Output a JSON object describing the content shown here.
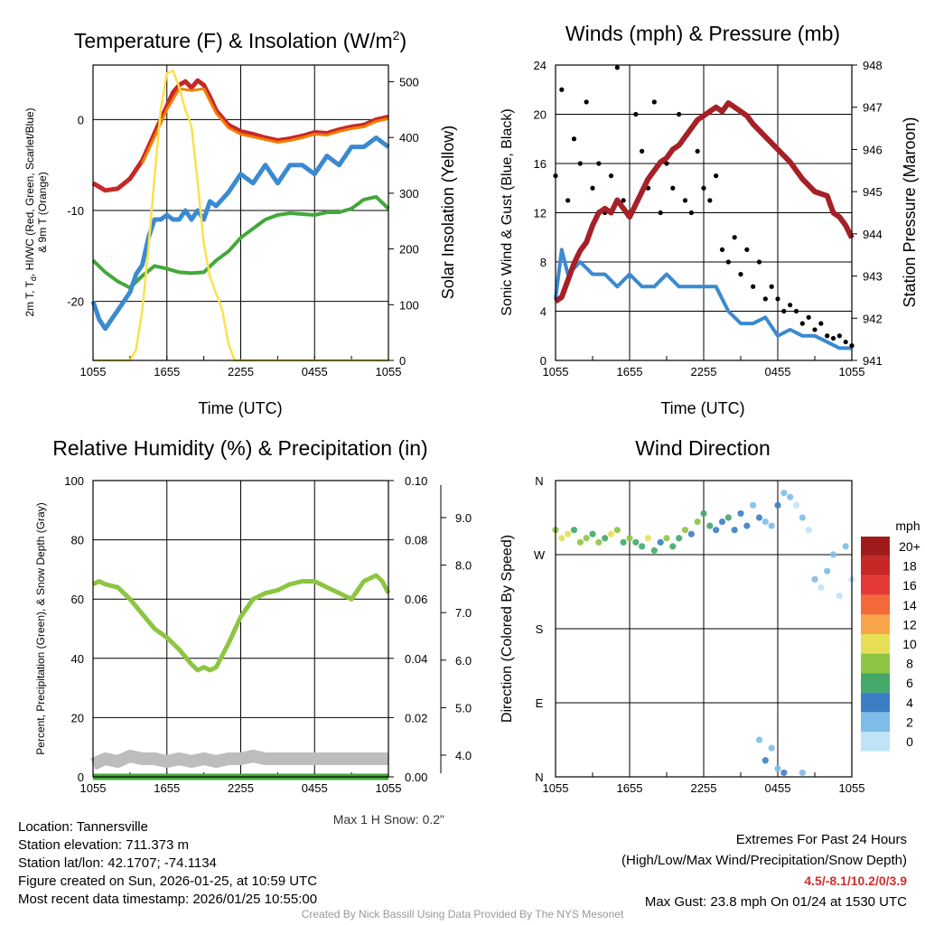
{
  "chart_data": [
    {
      "type": "line",
      "title": "Temperature (F) & Insolation (W/m",
      "title_sup": "2",
      "title_close": ")",
      "xlabel": "Time (UTC)",
      "ylabel_lines": [
        "2m T, T",
        "d",
        ", HI/WC (Red, Green, Scarlet/Blue)",
        "& 9m T (Orange)"
      ],
      "y2label": "Solar Insolation (Yellow)",
      "x_ticks": [
        "1055",
        "1655",
        "2255",
        "0455",
        "1055"
      ],
      "ylim": [
        -26.5,
        6
      ],
      "y_ticks": [
        0,
        -10,
        -20
      ],
      "y2lim": [
        0,
        530
      ],
      "y2_ticks": [
        0,
        100,
        200,
        300,
        400,
        500
      ],
      "series": [
        {
          "name": "2m T",
          "color": "#c62828",
          "x": [
            0,
            1,
            2,
            3,
            4,
            4.5,
            5,
            5.5,
            6,
            6.5,
            7,
            7.5,
            8,
            8.5,
            9,
            9.5,
            10,
            10.5,
            11,
            12,
            13,
            14,
            15,
            16,
            17,
            18,
            19,
            20,
            21,
            22,
            23,
            24
          ],
          "values": [
            -7,
            -7.8,
            -7.6,
            -6.5,
            -4.5,
            -3,
            -1.5,
            0,
            1.5,
            3,
            3.8,
            4.2,
            3.5,
            4.3,
            3.8,
            2.5,
            1,
            0.2,
            -0.6,
            -1.3,
            -1.6,
            -2,
            -2.3,
            -2.1,
            -1.8,
            -1.4,
            -1.5,
            -1.1,
            -0.8,
            -0.6,
            0,
            0.3
          ]
        },
        {
          "name": "9m T",
          "color": "#f57c00",
          "x": [
            4,
            5,
            6,
            7,
            8,
            9,
            10,
            11,
            12,
            13,
            14,
            15,
            16,
            17,
            18,
            19,
            20,
            21,
            22,
            23,
            24
          ],
          "values": [
            -4.8,
            -1.9,
            1.1,
            3.4,
            3.2,
            3.4,
            0.7,
            -0.9,
            -1.6,
            -1.9,
            -2.2,
            -2.5,
            -2.3,
            -2,
            -1.6,
            -1.7,
            -1.3,
            -1,
            -0.8,
            -0.2,
            0.1
          ]
        },
        {
          "name": "Td",
          "color": "#43a83a",
          "x": [
            0,
            1,
            2,
            3,
            4,
            5,
            6,
            7,
            8,
            9,
            10,
            11,
            12,
            13,
            14,
            15,
            16,
            17,
            18,
            19,
            20,
            21,
            22,
            23,
            24
          ],
          "values": [
            -15.5,
            -16.8,
            -17.8,
            -18.5,
            -17.2,
            -16.1,
            -16.4,
            -16.8,
            -16.9,
            -16.8,
            -15.5,
            -14.5,
            -13,
            -12,
            -11,
            -10.5,
            -10.3,
            -10.4,
            -10.5,
            -10.2,
            -10.2,
            -9.8,
            -8.8,
            -8.5,
            -9.8
          ]
        },
        {
          "name": "Wind Chill",
          "color": "#3b8ad0",
          "x": [
            0,
            0.5,
            1,
            1.5,
            2,
            2.5,
            3,
            3.5,
            4,
            4.5,
            5,
            5.5,
            6,
            6.5,
            7,
            7.5,
            8,
            8.5,
            9,
            9.5,
            10,
            11,
            12,
            13,
            14,
            15,
            16,
            17,
            18,
            19,
            20,
            21,
            22,
            23,
            24
          ],
          "values": [
            -20,
            -22,
            -23,
            -22,
            -21,
            -20,
            -19,
            -17,
            -16,
            -13,
            -11,
            -11,
            -10.5,
            -11,
            -11,
            -10,
            -11,
            -10,
            -11,
            -9,
            -9.5,
            -8,
            -6,
            -7,
            -5,
            -7,
            -5,
            -5,
            -6,
            -4,
            -5,
            -3,
            -3,
            -2,
            -3
          ]
        },
        {
          "name": "Solar Insolation",
          "color": "#fbe14b",
          "axis": "y2",
          "x": [
            0,
            2,
            3,
            3.5,
            4,
            4.5,
            5,
            5.5,
            6,
            6.5,
            7,
            7.5,
            8,
            8.5,
            9,
            9.5,
            10,
            10.5,
            11,
            11.5,
            24
          ],
          "values": [
            0,
            0,
            0,
            20,
            90,
            200,
            330,
            450,
            515,
            520,
            490,
            450,
            420,
            320,
            210,
            150,
            120,
            90,
            30,
            0,
            0
          ]
        }
      ]
    },
    {
      "type": "line",
      "title": "Winds (mph) & Pressure (mb)",
      "xlabel": "Time (UTC)",
      "ylabel": "Sonic Wind & Gust (Blue, Black)",
      "y2label": "Station Pressure (Maroon)",
      "x_ticks": [
        "1055",
        "1655",
        "2255",
        "0455",
        "1055"
      ],
      "ylim": [
        0,
        24
      ],
      "y_ticks": [
        0,
        4,
        8,
        12,
        16,
        20,
        24
      ],
      "y2lim": [
        941,
        948
      ],
      "y2_ticks": [
        941,
        942,
        943,
        944,
        945,
        946,
        947,
        948
      ],
      "series": [
        {
          "name": "Sonic Wind",
          "color": "#3b8ad0",
          "x": [
            0,
            0.5,
            1,
            2,
            3,
            4,
            5,
            6,
            7,
            8,
            9,
            10,
            11,
            12,
            13,
            14,
            15,
            16,
            17,
            18,
            19,
            20,
            21,
            22,
            23,
            24
          ],
          "values": [
            5,
            9,
            7,
            8,
            7,
            7,
            6,
            7,
            6,
            6,
            7,
            6,
            6,
            6,
            6,
            4,
            3,
            3,
            3.5,
            2,
            2.5,
            2,
            2,
            1.5,
            1,
            1
          ]
        },
        {
          "name": "Gust",
          "color": "#000000",
          "style": "points",
          "x": [
            0,
            0.5,
            1,
            1.5,
            2,
            2.5,
            3,
            3.5,
            4,
            4.5,
            5,
            5.5,
            6,
            6.5,
            7,
            7.5,
            8,
            8.5,
            9,
            9.5,
            10,
            10.5,
            11,
            11.5,
            12,
            12.5,
            13,
            13.5,
            14,
            14.5,
            15,
            15.5,
            16,
            16.5,
            17,
            17.5,
            18,
            18.5,
            19,
            19.5,
            20,
            20.5,
            21,
            21.5,
            22,
            22.5,
            23,
            23.5,
            24
          ],
          "values": [
            15,
            22,
            13,
            18,
            16,
            21,
            14,
            16,
            12,
            15,
            23.8,
            13,
            12,
            20,
            17,
            14,
            21,
            12,
            16,
            14,
            20,
            13,
            12,
            17,
            14,
            13,
            15,
            9,
            8,
            10,
            7,
            9,
            6,
            8,
            5,
            6,
            5,
            4,
            4.5,
            4,
            3,
            3.5,
            2.5,
            3,
            2,
            1.8,
            2,
            1.5,
            1.2
          ]
        },
        {
          "name": "Station Pressure",
          "color": "#a52127",
          "axis": "y2",
          "x": [
            0,
            0.5,
            1,
            1.5,
            2,
            2.5,
            3,
            3.5,
            4,
            4.5,
            5,
            5.5,
            6,
            6.5,
            7,
            7.5,
            8,
            8.5,
            9,
            9.5,
            10,
            10.5,
            11,
            11.5,
            12,
            12.5,
            13,
            13.5,
            14,
            14.5,
            15,
            15.5,
            16,
            17,
            18,
            19,
            20,
            21,
            22,
            22.5,
            23,
            23.5,
            24
          ],
          "values": [
            942.4,
            942.5,
            942.9,
            943.3,
            943.6,
            943.8,
            944.2,
            944.5,
            944.6,
            944.5,
            944.8,
            944.6,
            944.4,
            944.7,
            945,
            945.3,
            945.5,
            945.7,
            945.8,
            946,
            946.1,
            946.3,
            946.5,
            946.7,
            946.8,
            946.9,
            947,
            946.9,
            947.1,
            947,
            946.9,
            946.8,
            946.6,
            946.3,
            946,
            945.7,
            945.3,
            945,
            944.9,
            944.5,
            944.4,
            944.2,
            943.9
          ]
        }
      ]
    },
    {
      "type": "line",
      "title": "Relative Humidity (%) & Precipitation (in)",
      "xlabel": "",
      "ylabel": "Percent, Precipitation (Green), & Snow Depth (Gray)",
      "x_ticks": [
        "1055",
        "1655",
        "2255",
        "0455",
        "1055"
      ],
      "ylim": [
        0,
        100
      ],
      "y_ticks": [
        0,
        20,
        40,
        60,
        80,
        100
      ],
      "y2lim": [
        0,
        0.1
      ],
      "y2_ticks": [
        "0.00",
        "0.02",
        "0.04",
        "0.06",
        "0.08",
        "0.10"
      ],
      "y3_ticks": [
        "4.0",
        "5.0",
        "6.0",
        "7.0",
        "8.0",
        "9.0"
      ],
      "series": [
        {
          "name": "Relative Humidity",
          "color": "#8dc542",
          "x": [
            0,
            0.5,
            1,
            2,
            3,
            4,
            5,
            6,
            7,
            8,
            8.5,
            9,
            9.5,
            10,
            11,
            12,
            13,
            14,
            15,
            16,
            17,
            18,
            19,
            20,
            21,
            22,
            23,
            23.5,
            24
          ],
          "values": [
            65,
            66,
            65,
            64,
            60,
            55,
            50,
            47,
            43,
            38,
            36,
            37,
            36,
            37,
            45,
            54,
            60,
            62,
            63,
            65,
            66,
            66,
            64,
            62,
            60,
            66,
            68,
            66,
            62
          ]
        },
        {
          "name": "Precipitation",
          "color": "#43a83a",
          "x": [
            0,
            24
          ],
          "values": [
            0,
            0
          ]
        },
        {
          "name": "Snow Depth",
          "color": "#bdbdbd",
          "x": [
            0,
            1,
            2,
            3,
            4,
            5,
            6,
            7,
            8,
            9,
            10,
            11,
            12,
            13,
            14,
            15,
            16,
            17,
            18,
            19,
            20,
            21,
            22,
            23,
            24
          ],
          "values": [
            4,
            6,
            5,
            7,
            6,
            6,
            5,
            6,
            5,
            6,
            5,
            6,
            6,
            7,
            6,
            6,
            6,
            6,
            6,
            6,
            6,
            6,
            6,
            6,
            6
          ]
        }
      ]
    },
    {
      "type": "scatter",
      "title": "Wind Direction",
      "ylabel": "Direction (Colored By Speed)",
      "x_ticks": [
        "1055",
        "1655",
        "2255",
        "0455",
        "1055"
      ],
      "y_ticks": [
        "N",
        "W",
        "S",
        "E",
        "N"
      ],
      "colorbar_title": "mph",
      "colorbar": [
        {
          "label": "20+",
          "color": "#a01c1c"
        },
        {
          "label": "18",
          "color": "#c62828"
        },
        {
          "label": "16",
          "color": "#e53935"
        },
        {
          "label": "14",
          "color": "#f4693a"
        },
        {
          "label": "12",
          "color": "#f9a54a"
        },
        {
          "label": "10",
          "color": "#e6df55"
        },
        {
          "label": "8",
          "color": "#8dc542"
        },
        {
          "label": "6",
          "color": "#43a86a"
        },
        {
          "label": "4",
          "color": "#3b7ec4"
        },
        {
          "label": "2",
          "color": "#7fbce8"
        },
        {
          "label": "0",
          "color": "#bfe3f7"
        }
      ],
      "points_x": [
        0,
        0.5,
        1,
        1.5,
        2,
        2.5,
        3,
        3.5,
        4,
        4.5,
        5,
        5.5,
        6,
        6.5,
        7,
        7.5,
        8,
        8.5,
        9,
        9.5,
        10,
        10.5,
        11,
        11.5,
        12,
        12.5,
        13,
        13.5,
        14,
        14.5,
        15,
        15.5,
        16,
        16.5,
        17,
        17.5,
        18,
        18.5,
        19,
        19.5,
        20,
        20.5,
        21,
        21.5,
        22,
        22.5,
        23,
        23.5,
        24,
        16.5,
        17,
        17.5,
        18,
        18.5,
        20
      ],
      "points_dir": [
        300,
        290,
        295,
        300,
        285,
        290,
        295,
        285,
        290,
        295,
        300,
        285,
        290,
        285,
        280,
        290,
        275,
        285,
        290,
        280,
        290,
        300,
        295,
        310,
        320,
        305,
        300,
        310,
        315,
        300,
        320,
        305,
        330,
        315,
        310,
        305,
        330,
        345,
        340,
        330,
        315,
        300,
        240,
        230,
        250,
        270,
        220,
        280,
        240,
        45,
        20,
        35,
        10,
        5,
        5
      ],
      "points_speed": [
        8,
        10,
        9,
        6,
        8,
        7,
        5,
        8,
        6,
        9,
        7,
        5,
        8,
        6,
        5,
        9,
        6,
        4,
        7,
        5,
        6,
        8,
        4,
        7,
        5,
        6,
        4,
        3,
        5,
        4,
        3,
        4,
        2,
        3,
        1,
        2,
        3,
        1,
        1,
        0,
        1,
        0,
        1,
        0,
        1,
        1,
        0,
        1,
        0,
        2,
        3,
        2,
        1,
        3,
        1
      ]
    }
  ],
  "location": {
    "line1": "Location: Tannersville",
    "line2": "Station elevation: 711.373 m",
    "line3": "Station lat/lon: 42.1707; -74.1134",
    "line4": "Figure created on Sun, 2026-01-25, at 10:59 UTC",
    "line5": "Most recent data timestamp: 2026/01/25 10:55:00"
  },
  "max_snow": "Max 1 H Snow: 0.2\"",
  "extremes": {
    "heading": "Extremes For Past 24 Hours",
    "subheading": "(High/Low/Max Wind/Precipitation/Snow Depth)",
    "values": "4.5/-8.1/10.2/0/3.9",
    "values_color": "#d32f2f",
    "max_gust": "Max Gust: 23.8 mph On 01/24 at 1530 UTC"
  },
  "credit": "Created By Nick Bassill Using Data Provided By The NYS Mesonet"
}
